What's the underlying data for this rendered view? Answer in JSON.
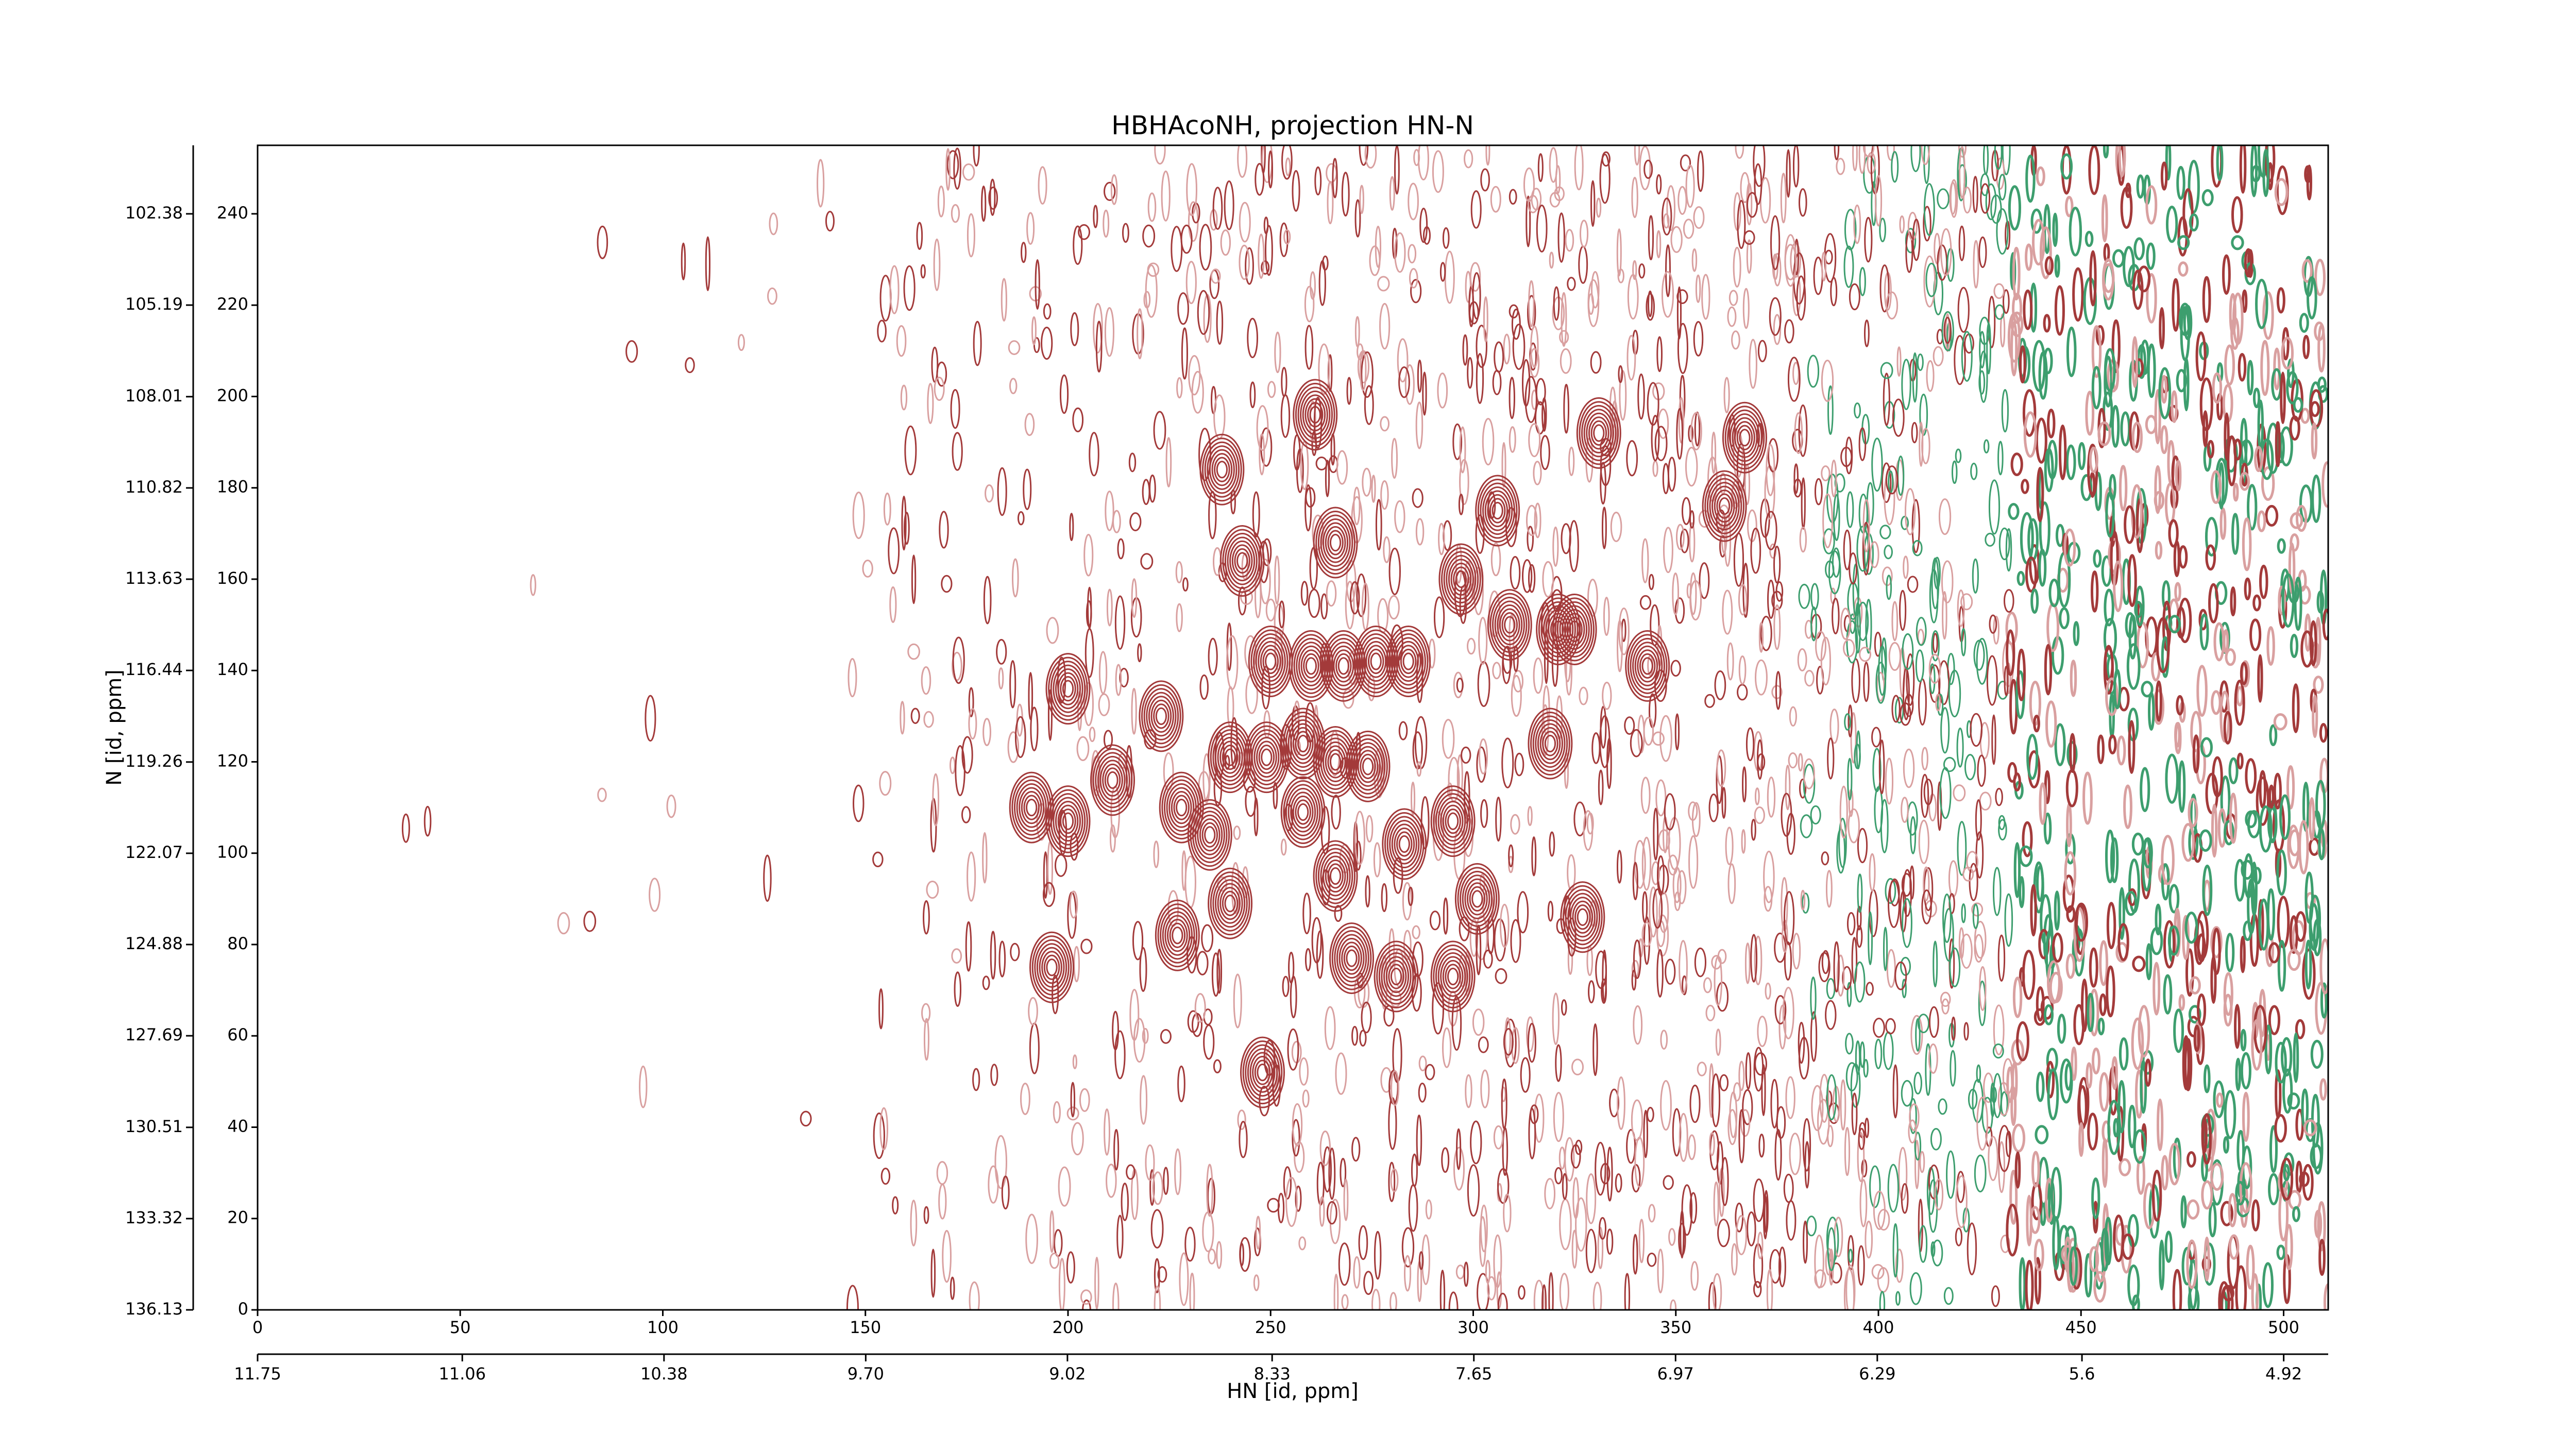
{
  "chart_data": {
    "type": "contour",
    "title": "HBHAcoNH, projection HN-N",
    "x_label": "HN [id, ppm]",
    "y_label": "N [id, ppm]",
    "xlim": [
      0,
      511
    ],
    "ylim": [
      0,
      255
    ],
    "xticks": [
      0,
      50,
      100,
      150,
      200,
      250,
      300,
      350,
      400,
      450,
      500
    ],
    "yticks": [
      0,
      20,
      40,
      60,
      80,
      100,
      120,
      140,
      160,
      180,
      200,
      220,
      240
    ],
    "x2lim": [
      11.75,
      4.77
    ],
    "x2ticks": [
      11.75,
      11.06,
      10.38,
      {
        "value": 9.7,
        "label": "9.70"
      },
      9.02,
      8.33,
      7.65,
      6.97,
      6.29,
      5.6,
      4.92
    ],
    "y2lim": [
      136.13,
      100.27
    ],
    "y2ticks": [
      136.13,
      133.32,
      130.51,
      127.69,
      124.88,
      122.07,
      119.26,
      116.44,
      113.63,
      110.82,
      108.01,
      105.19,
      102.38
    ],
    "color": "#a33a3a",
    "peaks": {
      "x": [
        261,
        238,
        266,
        243,
        200,
        191,
        200,
        196,
        223,
        211,
        228,
        240,
        249,
        250,
        260,
        268,
        276,
        284,
        297,
        306,
        309,
        321,
        325,
        319,
        343,
        362,
        331,
        367,
        248,
        227,
        240,
        235,
        258,
        266,
        274,
        283,
        295,
        301,
        270,
        281,
        295,
        327,
        258,
        266
      ],
      "y": [
        196,
        184,
        168,
        164,
        136,
        110,
        107,
        75,
        130,
        116,
        110,
        121,
        121,
        142,
        141,
        141,
        142,
        142,
        160,
        175,
        150,
        149,
        149,
        124,
        141,
        176,
        192,
        191,
        52,
        82,
        89,
        104,
        109,
        95,
        119,
        102,
        107,
        90,
        77,
        73,
        73,
        86,
        124,
        120
      ]
    }
  }
}
